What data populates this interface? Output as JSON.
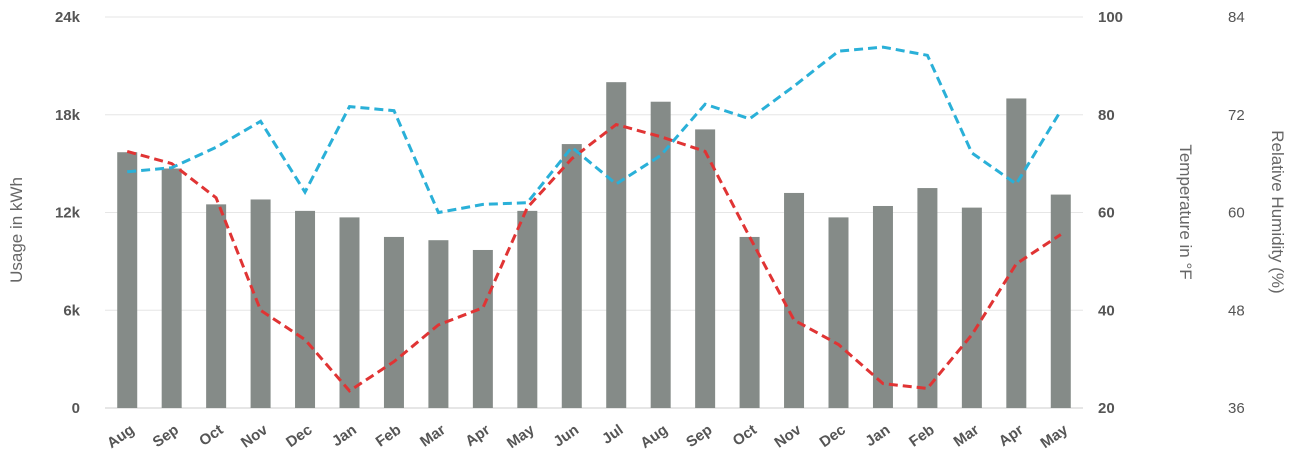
{
  "chart_data": {
    "type": "bar",
    "categories": [
      "Aug",
      "Sep",
      "Oct",
      "Nov",
      "Dec",
      "Jan",
      "Feb",
      "Mar",
      "Apr",
      "May",
      "Jun",
      "Jul",
      "Aug",
      "Sep",
      "Oct",
      "Nov",
      "Dec",
      "Jan",
      "Feb",
      "Mar",
      "Apr",
      "May"
    ],
    "series": [
      {
        "type": "bar",
        "axis": "left",
        "color": "#858b88",
        "values": [
          15700,
          14700,
          12500,
          12800,
          12100,
          11700,
          10500,
          10300,
          9700,
          12100,
          16200,
          20000,
          18800,
          17100,
          10500,
          13200,
          11700,
          12400,
          13500,
          12300,
          19000,
          13100
        ]
      },
      {
        "type": "line",
        "axis": "right",
        "color": "#e03434",
        "dashed": true,
        "values": [
          72.5,
          70,
          63,
          40,
          34,
          23.5,
          29.5,
          37,
          40.5,
          61,
          71,
          78,
          75.5,
          72.5,
          55,
          38,
          33,
          25,
          24,
          35,
          49.5,
          55.5
        ]
      },
      {
        "type": "line",
        "axis": "far-right",
        "color": "#2ab0d8",
        "dashed": true,
        "values": [
          65,
          65.5,
          68,
          71.2,
          62.5,
          73,
          72.5,
          60,
          61,
          61.2,
          68,
          63.5,
          67,
          73.3,
          71.5,
          75.5,
          79.8,
          80.3,
          79.3,
          67.3,
          63.5,
          72.5
        ]
      }
    ],
    "y_left": {
      "label": "Usage in kWh",
      "min": 0,
      "max": 24000,
      "ticks": [
        "0",
        "6k",
        "12k",
        "18k",
        "24k"
      ]
    },
    "y_right": {
      "label": "Temperature in °F",
      "min": 20,
      "max": 100,
      "ticks": [
        "20",
        "40",
        "60",
        "80",
        "100"
      ]
    },
    "y_far_right": {
      "label": "Relative Humidity (%)",
      "min": 36,
      "max": 84,
      "ticks": [
        "36",
        "48",
        "60",
        "72",
        "84"
      ]
    },
    "grid": true,
    "legend": "none"
  }
}
